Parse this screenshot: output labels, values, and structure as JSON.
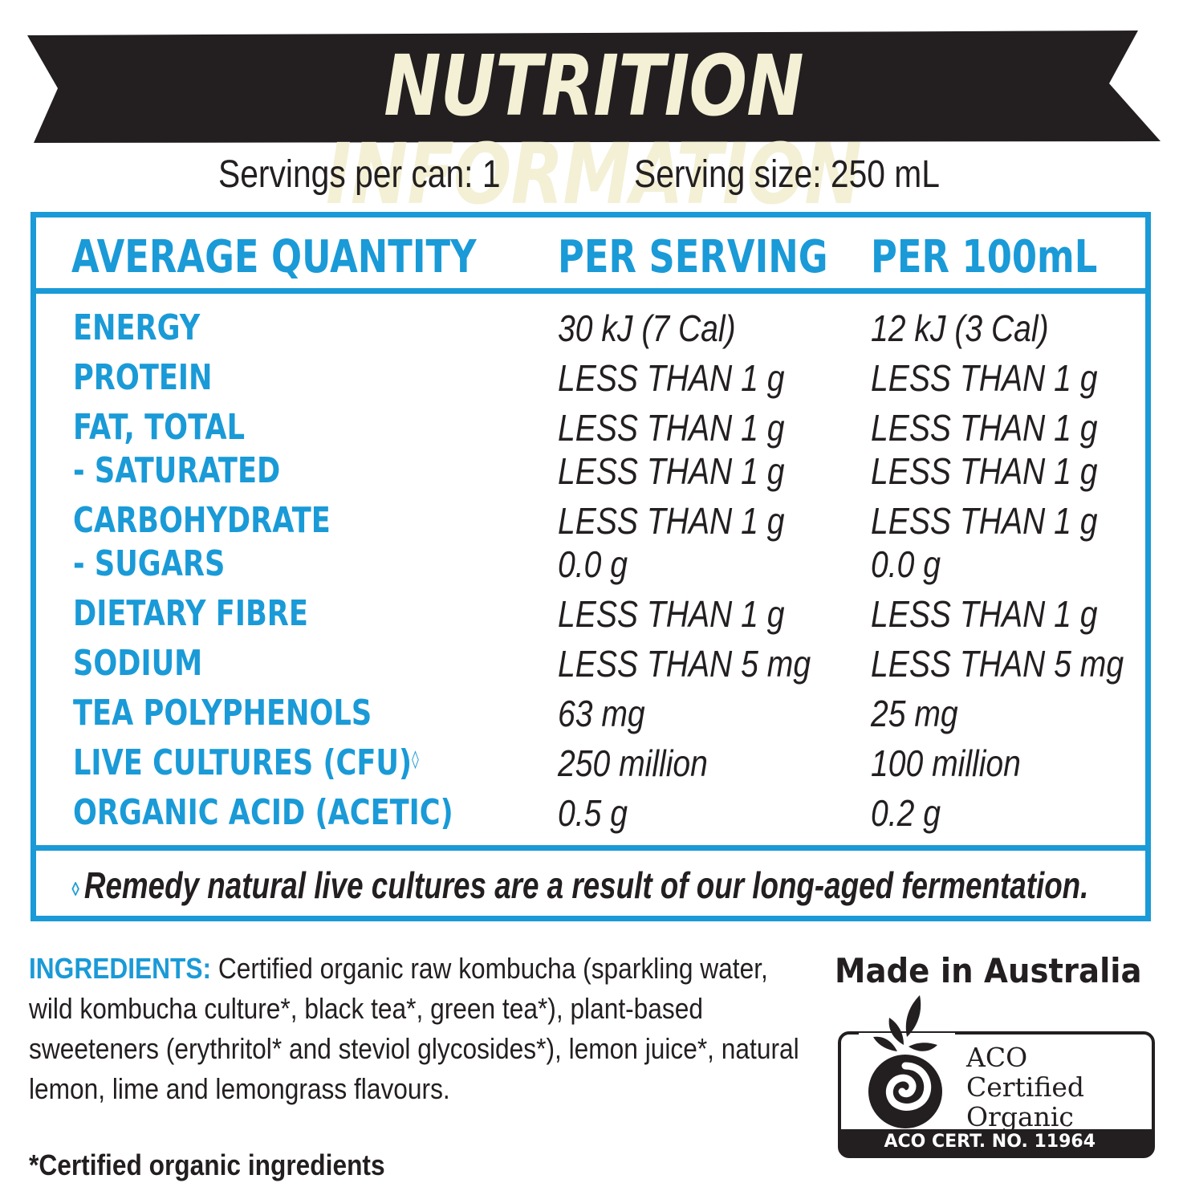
{
  "title": "NUTRITION INFORMATION",
  "servings": {
    "per_can": "Servings per can: 1",
    "size": "Serving size: 250 mL"
  },
  "table": {
    "headers": [
      "AVERAGE QUANTITY",
      "PER SERVING",
      "PER 100mL"
    ],
    "rows": [
      {
        "name": "ENERGY",
        "per_serving": "30 kJ (7 Cal)",
        "per_100ml": "12 kJ (3 Cal)"
      },
      {
        "name": "PROTEIN",
        "per_serving": "LESS THAN 1 g",
        "per_100ml": "LESS THAN 1 g"
      },
      {
        "name": "FAT, TOTAL",
        "per_serving": "LESS THAN 1 g",
        "per_100ml": "LESS THAN 1 g"
      },
      {
        "name": "- SATURATED",
        "per_serving": "LESS THAN 1 g",
        "per_100ml": "LESS THAN 1 g"
      },
      {
        "name": "CARBOHYDRATE",
        "per_serving": "LESS THAN 1 g",
        "per_100ml": "LESS THAN 1 g"
      },
      {
        "name": "- SUGARS",
        "per_serving": "0.0 g",
        "per_100ml": "0.0 g"
      },
      {
        "name": "DIETARY FIBRE",
        "per_serving": "LESS THAN 1 g",
        "per_100ml": "LESS THAN 1 g"
      },
      {
        "name": "SODIUM",
        "per_serving": "LESS THAN 5 mg",
        "per_100ml": "LESS THAN 5 mg"
      },
      {
        "name": "TEA POLYPHENOLS",
        "per_serving": "63 mg",
        "per_100ml": "25 mg"
      },
      {
        "name": "LIVE CULTURES (CFU)",
        "marker": "◊",
        "per_serving": "250 million",
        "per_100ml": "100 million"
      },
      {
        "name": "ORGANIC ACID (ACETIC)",
        "per_serving": "0.5 g",
        "per_100ml": "0.2 g"
      }
    ],
    "footnote_marker": "◊",
    "footnote": "Remedy natural live cultures are a result of our long-aged fermentation."
  },
  "ingredients": {
    "label": "INGREDIENTS:",
    "text": "Certified organic raw kombucha (sparkling water, wild kombucha culture*, black tea*, green tea*), plant-based sweeteners (erythritol* and steviol glycosides*), lemon juice*, natural lemon, lime and lemongrass flavours."
  },
  "certified_note": "*Certified organic ingredients",
  "origin": "Made in Australia",
  "certification": {
    "line1": "ACO",
    "line2": "Certified",
    "line3": "Organic",
    "cert_no": "ACO CERT. NO. 11964"
  },
  "colors": {
    "accent": "#1a9ad7",
    "banner": "#231f20",
    "banner_text": "#f3f0d6",
    "text": "#231f20"
  }
}
